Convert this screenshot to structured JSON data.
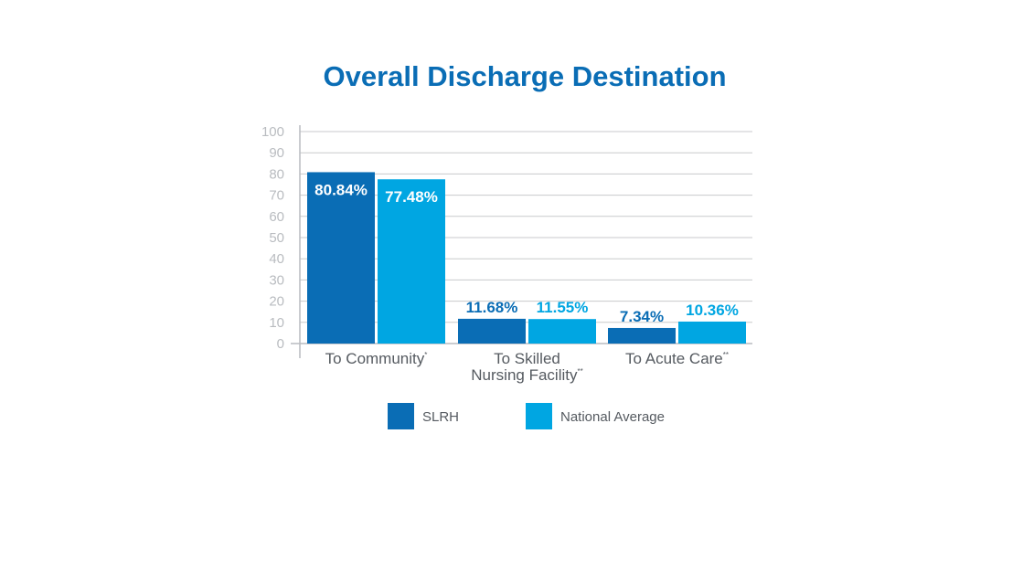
{
  "chart_data": {
    "type": "bar",
    "title": "Overall Discharge Destination",
    "xlabel": "",
    "ylabel": "",
    "ylim": [
      0,
      100
    ],
    "yticks": [
      0,
      10,
      20,
      30,
      40,
      50,
      60,
      70,
      80,
      90,
      100
    ],
    "grid": true,
    "legend_position": "bottom",
    "categories": [
      {
        "lines": [
          "To Community"
        ],
        "sup": "*"
      },
      {
        "lines": [
          "To Skilled",
          "Nursing Facility"
        ],
        "sup": "**"
      },
      {
        "lines": [
          "To Acute Care"
        ],
        "sup": "**"
      }
    ],
    "series": [
      {
        "name": "SLRH",
        "color": "#0a6db5",
        "values": [
          80.84,
          11.68,
          7.34
        ],
        "labels": [
          "80.84%",
          "11.68%",
          "7.34%"
        ]
      },
      {
        "name": "National Average",
        "color": "#00a6e2",
        "values": [
          77.48,
          11.55,
          10.36
        ],
        "labels": [
          "77.48%",
          "11.55%",
          "10.36%"
        ]
      }
    ],
    "colors": {
      "title": "#0a6db5",
      "grid": "#c8cacc",
      "axis": "#b9bcc0",
      "inside_label": "#ffffff"
    }
  }
}
